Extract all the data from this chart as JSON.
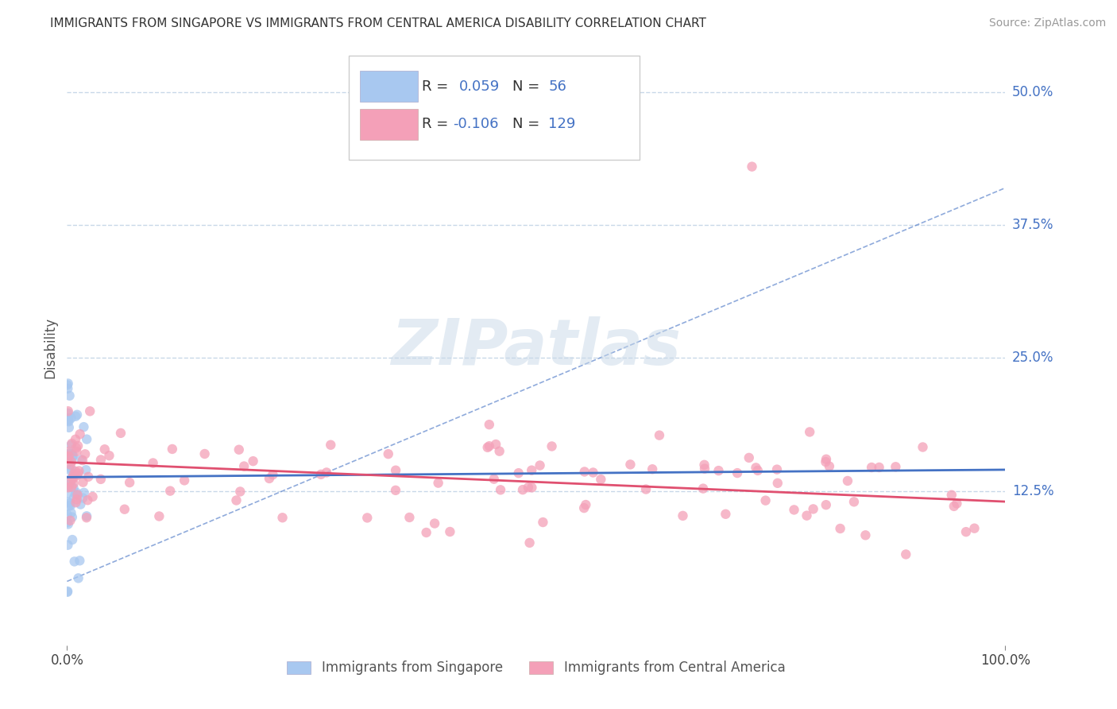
{
  "title": "IMMIGRANTS FROM SINGAPORE VS IMMIGRANTS FROM CENTRAL AMERICA DISABILITY CORRELATION CHART",
  "source": "Source: ZipAtlas.com",
  "ylabel": "Disability",
  "xlim": [
    0,
    1.0
  ],
  "ylim": [
    -0.02,
    0.54
  ],
  "ytick_positions": [
    0.125,
    0.25,
    0.375,
    0.5
  ],
  "ytick_labels": [
    "12.5%",
    "25.0%",
    "37.5%",
    "50.0%"
  ],
  "xtick_positions": [
    0.0,
    1.0
  ],
  "xtick_labels": [
    "0.0%",
    "100.0%"
  ],
  "r_singapore": 0.059,
  "n_singapore": 56,
  "r_central_america": -0.106,
  "n_central_america": 129,
  "color_singapore": "#a8c8f0",
  "color_central_america": "#f4a0b8",
  "line_color_singapore": "#4472c4",
  "line_color_central_america": "#e05070",
  "tick_label_color": "#4472c4",
  "watermark": "ZIPatlas",
  "background_color": "#ffffff",
  "grid_color": "#c8d8e8",
  "legend_r1": "R =  0.059",
  "legend_n1": "N =  56",
  "legend_r2": "R = -0.106",
  "legend_n2": "N = 129",
  "legend_label1": "Immigrants from Singapore",
  "legend_label2": "Immigrants from Central America",
  "diag_line_x": [
    0.0,
    1.0
  ],
  "diag_line_y": [
    0.04,
    0.41
  ],
  "sg_trend_x0": 0.0,
  "sg_trend_y0": 0.138,
  "sg_trend_x1": 1.0,
  "sg_trend_y1": 0.145,
  "ca_trend_x0": 0.0,
  "ca_trend_y0": 0.152,
  "ca_trend_x1": 1.0,
  "ca_trend_y1": 0.115
}
